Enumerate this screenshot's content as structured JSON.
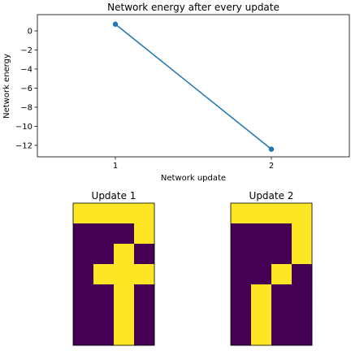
{
  "chart_data": [
    {
      "type": "line",
      "title": "Network energy after every update",
      "xlabel": "Network update",
      "ylabel": "Network energy",
      "x": [
        1,
        2
      ],
      "y": [
        0.7,
        -12.4
      ],
      "xlim": [
        0.5,
        2.5
      ],
      "ylim": [
        -13.2,
        1.7
      ],
      "xticks": [
        1,
        2
      ],
      "yticks": [
        0,
        -2,
        -4,
        -6,
        -8,
        -10,
        -12
      ],
      "ytick_labels": [
        "0",
        "−2",
        "−4",
        "−6",
        "−8",
        "−10",
        "−12"
      ],
      "grid": false,
      "line_color": "#1f77b4"
    },
    {
      "type": "heatmap",
      "title": "Update 1",
      "rows": 7,
      "cols": 4,
      "values": [
        [
          1,
          1,
          1,
          1
        ],
        [
          0,
          0,
          0,
          1
        ],
        [
          0,
          0,
          1,
          0
        ],
        [
          0,
          1,
          1,
          1
        ],
        [
          0,
          0,
          1,
          0
        ],
        [
          0,
          0,
          1,
          0
        ],
        [
          0,
          0,
          1,
          0
        ]
      ],
      "colors": {
        "0": "#440154",
        "1": "#fde725"
      }
    },
    {
      "type": "heatmap",
      "title": "Update 2",
      "rows": 7,
      "cols": 4,
      "values": [
        [
          1,
          1,
          1,
          1
        ],
        [
          0,
          0,
          0,
          1
        ],
        [
          0,
          0,
          0,
          1
        ],
        [
          0,
          0,
          1,
          0
        ],
        [
          0,
          1,
          0,
          0
        ],
        [
          0,
          1,
          0,
          0
        ],
        [
          0,
          1,
          0,
          0
        ]
      ],
      "colors": {
        "0": "#440154",
        "1": "#fde725"
      }
    }
  ]
}
